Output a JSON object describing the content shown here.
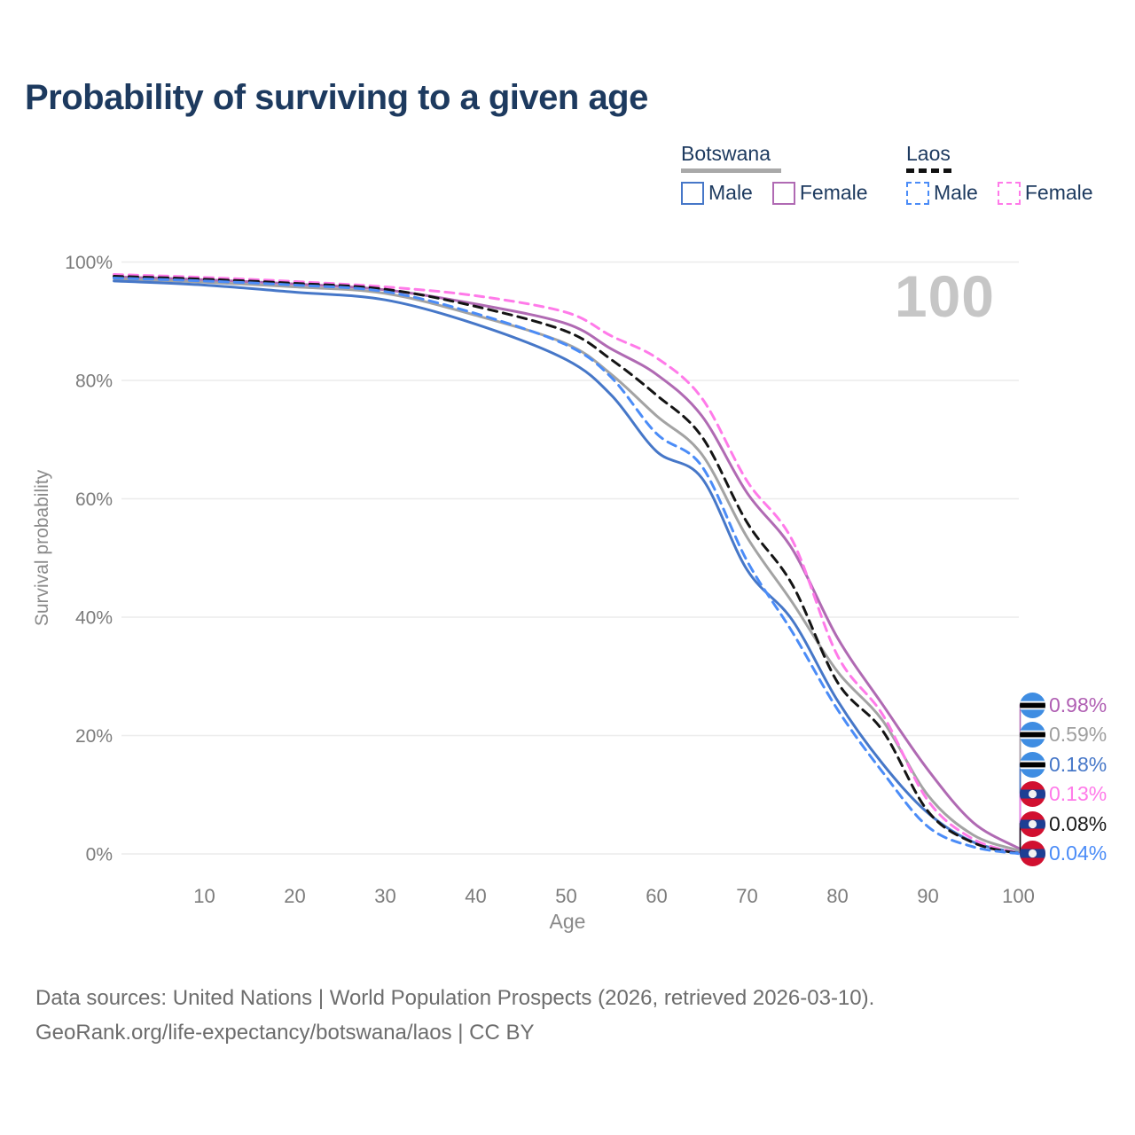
{
  "title": "Probability of surviving to a given age",
  "watermark": "100",
  "legend": {
    "groups": [
      {
        "label": "Botswana",
        "line_style": "solid",
        "underline_color": "#a9a9a9",
        "items": [
          {
            "label": "Male",
            "color": "#4677c8",
            "dashed": false
          },
          {
            "label": "Female",
            "color": "#b06ab3",
            "dashed": false
          }
        ]
      },
      {
        "label": "Laos",
        "line_style": "dashed",
        "underline_color": "#111111",
        "items": [
          {
            "label": "Male",
            "color": "#4b8cf7",
            "dashed": true
          },
          {
            "label": "Female",
            "color": "#ff7ae9",
            "dashed": true
          }
        ]
      }
    ]
  },
  "chart_data": {
    "type": "line",
    "title": "Probability of surviving to a given age",
    "xlabel": "Age",
    "ylabel": "Survival probability",
    "xlim": [
      0,
      100
    ],
    "ylim": [
      0,
      100
    ],
    "grid": true,
    "legend_position": "top-right",
    "x": [
      0,
      10,
      20,
      30,
      40,
      50,
      55,
      60,
      65,
      70,
      75,
      80,
      85,
      90,
      95,
      100
    ],
    "xticks": [
      {
        "value": 10,
        "label": "10"
      },
      {
        "value": 20,
        "label": "20"
      },
      {
        "value": 30,
        "label": "30"
      },
      {
        "value": 40,
        "label": "40"
      },
      {
        "value": 50,
        "label": "50"
      },
      {
        "value": 60,
        "label": "60"
      },
      {
        "value": 70,
        "label": "70"
      },
      {
        "value": 80,
        "label": "80"
      },
      {
        "value": 90,
        "label": "90"
      },
      {
        "value": 100,
        "label": "100"
      }
    ],
    "yticks": [
      {
        "value": 0,
        "label": "0%"
      },
      {
        "value": 20,
        "label": "20%"
      },
      {
        "value": 40,
        "label": "40%"
      },
      {
        "value": 60,
        "label": "60%"
      },
      {
        "value": 80,
        "label": "80%"
      },
      {
        "value": 100,
        "label": "100%"
      }
    ],
    "series": [
      {
        "name": "Botswana Female",
        "country": "Botswana",
        "sex": "Female",
        "color": "#b06ab3",
        "dashed": false,
        "values": [
          97.5,
          97.0,
          96.3,
          95.3,
          92.9,
          89.6,
          85.3,
          81.0,
          74.0,
          61.0,
          51.5,
          36.5,
          25.2,
          14.2,
          5.3,
          0.98
        ],
        "end_label": "0.98%"
      },
      {
        "name": "Botswana Both",
        "country": "Botswana",
        "sex": "Both",
        "color": "#a3a3a3",
        "dashed": false,
        "values": [
          97.2,
          96.6,
          95.8,
          94.7,
          91.0,
          86.2,
          81.0,
          74.0,
          67.5,
          53.5,
          42.5,
          30.8,
          22.5,
          9.9,
          3.2,
          0.59
        ],
        "end_label": "0.59%"
      },
      {
        "name": "Botswana Male",
        "country": "Botswana",
        "sex": "Male",
        "color": "#4677c8",
        "dashed": false,
        "values": [
          96.8,
          96.1,
          94.9,
          93.6,
          89.5,
          83.5,
          77.5,
          68.0,
          63.5,
          48.0,
          39.5,
          25.9,
          15.2,
          6.9,
          2.0,
          0.18
        ],
        "end_label": "0.18%"
      },
      {
        "name": "Laos Female",
        "country": "Laos",
        "sex": "Female",
        "color": "#ff7ae9",
        "dashed": true,
        "values": [
          97.9,
          97.4,
          96.7,
          95.8,
          94.3,
          91.5,
          87.5,
          83.8,
          77.0,
          63.0,
          53.0,
          33.5,
          23.5,
          9.0,
          2.5,
          0.13
        ],
        "end_label": "0.13%"
      },
      {
        "name": "Laos Both",
        "country": "Laos",
        "sex": "Both",
        "color": "#141414",
        "dashed": true,
        "values": [
          97.6,
          97.1,
          96.4,
          95.4,
          92.5,
          88.3,
          83.5,
          77.5,
          70.5,
          56.0,
          45.5,
          29.0,
          20.8,
          7.2,
          1.9,
          0.08
        ],
        "end_label": "0.08%"
      },
      {
        "name": "Laos Male",
        "country": "Laos",
        "sex": "Male",
        "color": "#4b8cf7",
        "dashed": true,
        "values": [
          97.3,
          96.8,
          96.1,
          95.0,
          91.3,
          86.0,
          80.5,
          71.0,
          65.5,
          49.5,
          37.5,
          24.4,
          13.8,
          4.6,
          1.2,
          0.04
        ],
        "end_label": "0.04%"
      }
    ]
  },
  "end_labels": [
    {
      "flag": "botswana",
      "value": "0.98%",
      "color": "#b05fb3",
      "series": "Botswana Female"
    },
    {
      "flag": "botswana",
      "value": "0.59%",
      "color": "#9f9f9f",
      "series": "Botswana Both"
    },
    {
      "flag": "botswana",
      "value": "0.18%",
      "color": "#4677c8",
      "series": "Botswana Male"
    },
    {
      "flag": "laos",
      "value": "0.13%",
      "color": "#ff7ae9",
      "series": "Laos Female"
    },
    {
      "flag": "laos",
      "value": "0.08%",
      "color": "#1a1a1a",
      "series": "Laos Both"
    },
    {
      "flag": "laos",
      "value": "0.04%",
      "color": "#4b8cf7",
      "series": "Laos Male"
    }
  ],
  "footer": {
    "line1": "Data sources: United Nations | World Population Prospects (2026, retrieved 2026-03-10).",
    "line2": "GeoRank.org/life-expectancy/botswana/laos | CC BY"
  }
}
